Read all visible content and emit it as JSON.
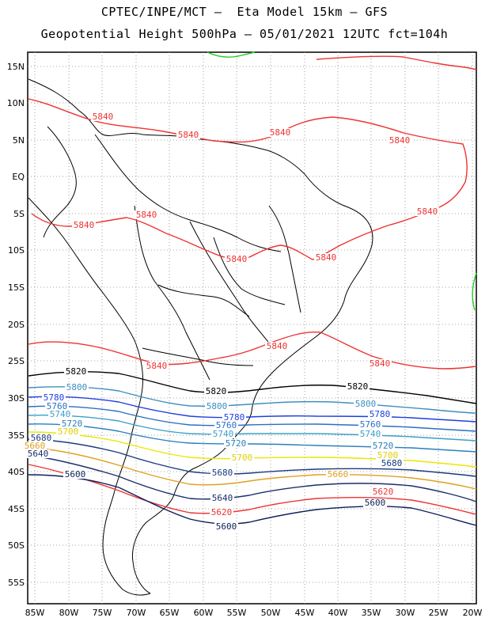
{
  "title_line1": "CPTEC/INPE/MCT –  Eta Model 15km – GFS",
  "title_line2": "Geopotential Height 500hPa – 05/01/2021 12UTC fct=104h",
  "lat_labels": [
    "15N",
    "10N",
    "5N",
    "EQ",
    "5S",
    "10S",
    "15S",
    "20S",
    "25S",
    "30S",
    "35S",
    "40S",
    "45S",
    "50S",
    "55S"
  ],
  "lon_labels": [
    "85W",
    "80W",
    "75W",
    "70W",
    "65W",
    "60W",
    "55W",
    "50W",
    "45W",
    "40W",
    "35W",
    "30W",
    "25W",
    "20W"
  ],
  "contours": [
    {
      "value": "5840",
      "color": "#ee3333",
      "labels": [
        "5840",
        "5840",
        "5840",
        "5840",
        "5840",
        "5840",
        "5840",
        "5840",
        "5840",
        "5840",
        "5840",
        "5840"
      ]
    },
    {
      "value": "5820",
      "color": "#000000",
      "labels": [
        "5820",
        "5820",
        "5820"
      ]
    },
    {
      "value": "5800",
      "color": "#3d8fbf",
      "labels": [
        "5800",
        "5800",
        "5800"
      ]
    },
    {
      "value": "5780",
      "color": "#1f3fe0",
      "labels": [
        "5780",
        "5780",
        "5780"
      ]
    },
    {
      "value": "5760",
      "color": "#2a6fc4",
      "labels": [
        "5760",
        "5760",
        "5760"
      ]
    },
    {
      "value": "5740",
      "color": "#3aa0c8",
      "labels": [
        "5740",
        "5740",
        "5740"
      ]
    },
    {
      "value": "5720",
      "color": "#2a7fbf",
      "labels": [
        "5720",
        "5720",
        "5720"
      ]
    },
    {
      "value": "5700",
      "color": "#e8e800",
      "labels": [
        "5700",
        "5700",
        "5700"
      ]
    },
    {
      "value": "5680",
      "color": "#1a3a80",
      "labels": [
        "5680",
        "5680",
        "5680"
      ]
    },
    {
      "value": "5660",
      "color": "#e0a020",
      "labels": [
        "5660",
        "5660"
      ]
    },
    {
      "value": "5640",
      "color": "#1a2f6a",
      "labels": [
        "5640",
        "5640"
      ]
    },
    {
      "value": "5620",
      "color": "#ee3333",
      "labels": [
        "5620",
        "5620"
      ]
    },
    {
      "value": "5600",
      "color": "#0d1f5a",
      "labels": [
        "5600",
        "5600",
        "5600"
      ]
    }
  ]
}
